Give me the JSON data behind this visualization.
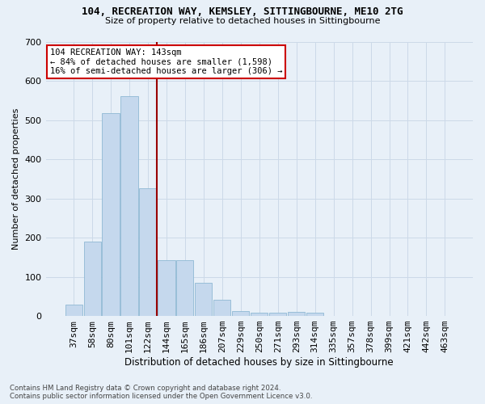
{
  "title1": "104, RECREATION WAY, KEMSLEY, SITTINGBOURNE, ME10 2TG",
  "title2": "Size of property relative to detached houses in Sittingbourne",
  "xlabel": "Distribution of detached houses by size in Sittingbourne",
  "ylabel": "Number of detached properties",
  "footnote": "Contains HM Land Registry data © Crown copyright and database right 2024.\nContains public sector information licensed under the Open Government Licence v3.0.",
  "bar_labels": [
    "37sqm",
    "58sqm",
    "80sqm",
    "101sqm",
    "122sqm",
    "144sqm",
    "165sqm",
    "186sqm",
    "207sqm",
    "229sqm",
    "250sqm",
    "271sqm",
    "293sqm",
    "314sqm",
    "335sqm",
    "357sqm",
    "378sqm",
    "399sqm",
    "421sqm",
    "442sqm",
    "463sqm"
  ],
  "bar_values": [
    30,
    190,
    518,
    560,
    325,
    143,
    143,
    85,
    42,
    12,
    8,
    8,
    10,
    8,
    0,
    0,
    0,
    0,
    0,
    0,
    0
  ],
  "bar_color": "#c5d8ed",
  "bar_edge_color": "#8fb8d4",
  "grid_color": "#ccd9e8",
  "background_color": "#e8f0f8",
  "vline_x": 4.5,
  "vline_color": "#990000",
  "annotation_text": "104 RECREATION WAY: 143sqm\n← 84% of detached houses are smaller (1,598)\n16% of semi-detached houses are larger (306) →",
  "annotation_box_color": "#ffffff",
  "annotation_box_edge": "#cc0000",
  "ylim": [
    0,
    700
  ],
  "yticks": [
    0,
    100,
    200,
    300,
    400,
    500,
    600,
    700
  ]
}
